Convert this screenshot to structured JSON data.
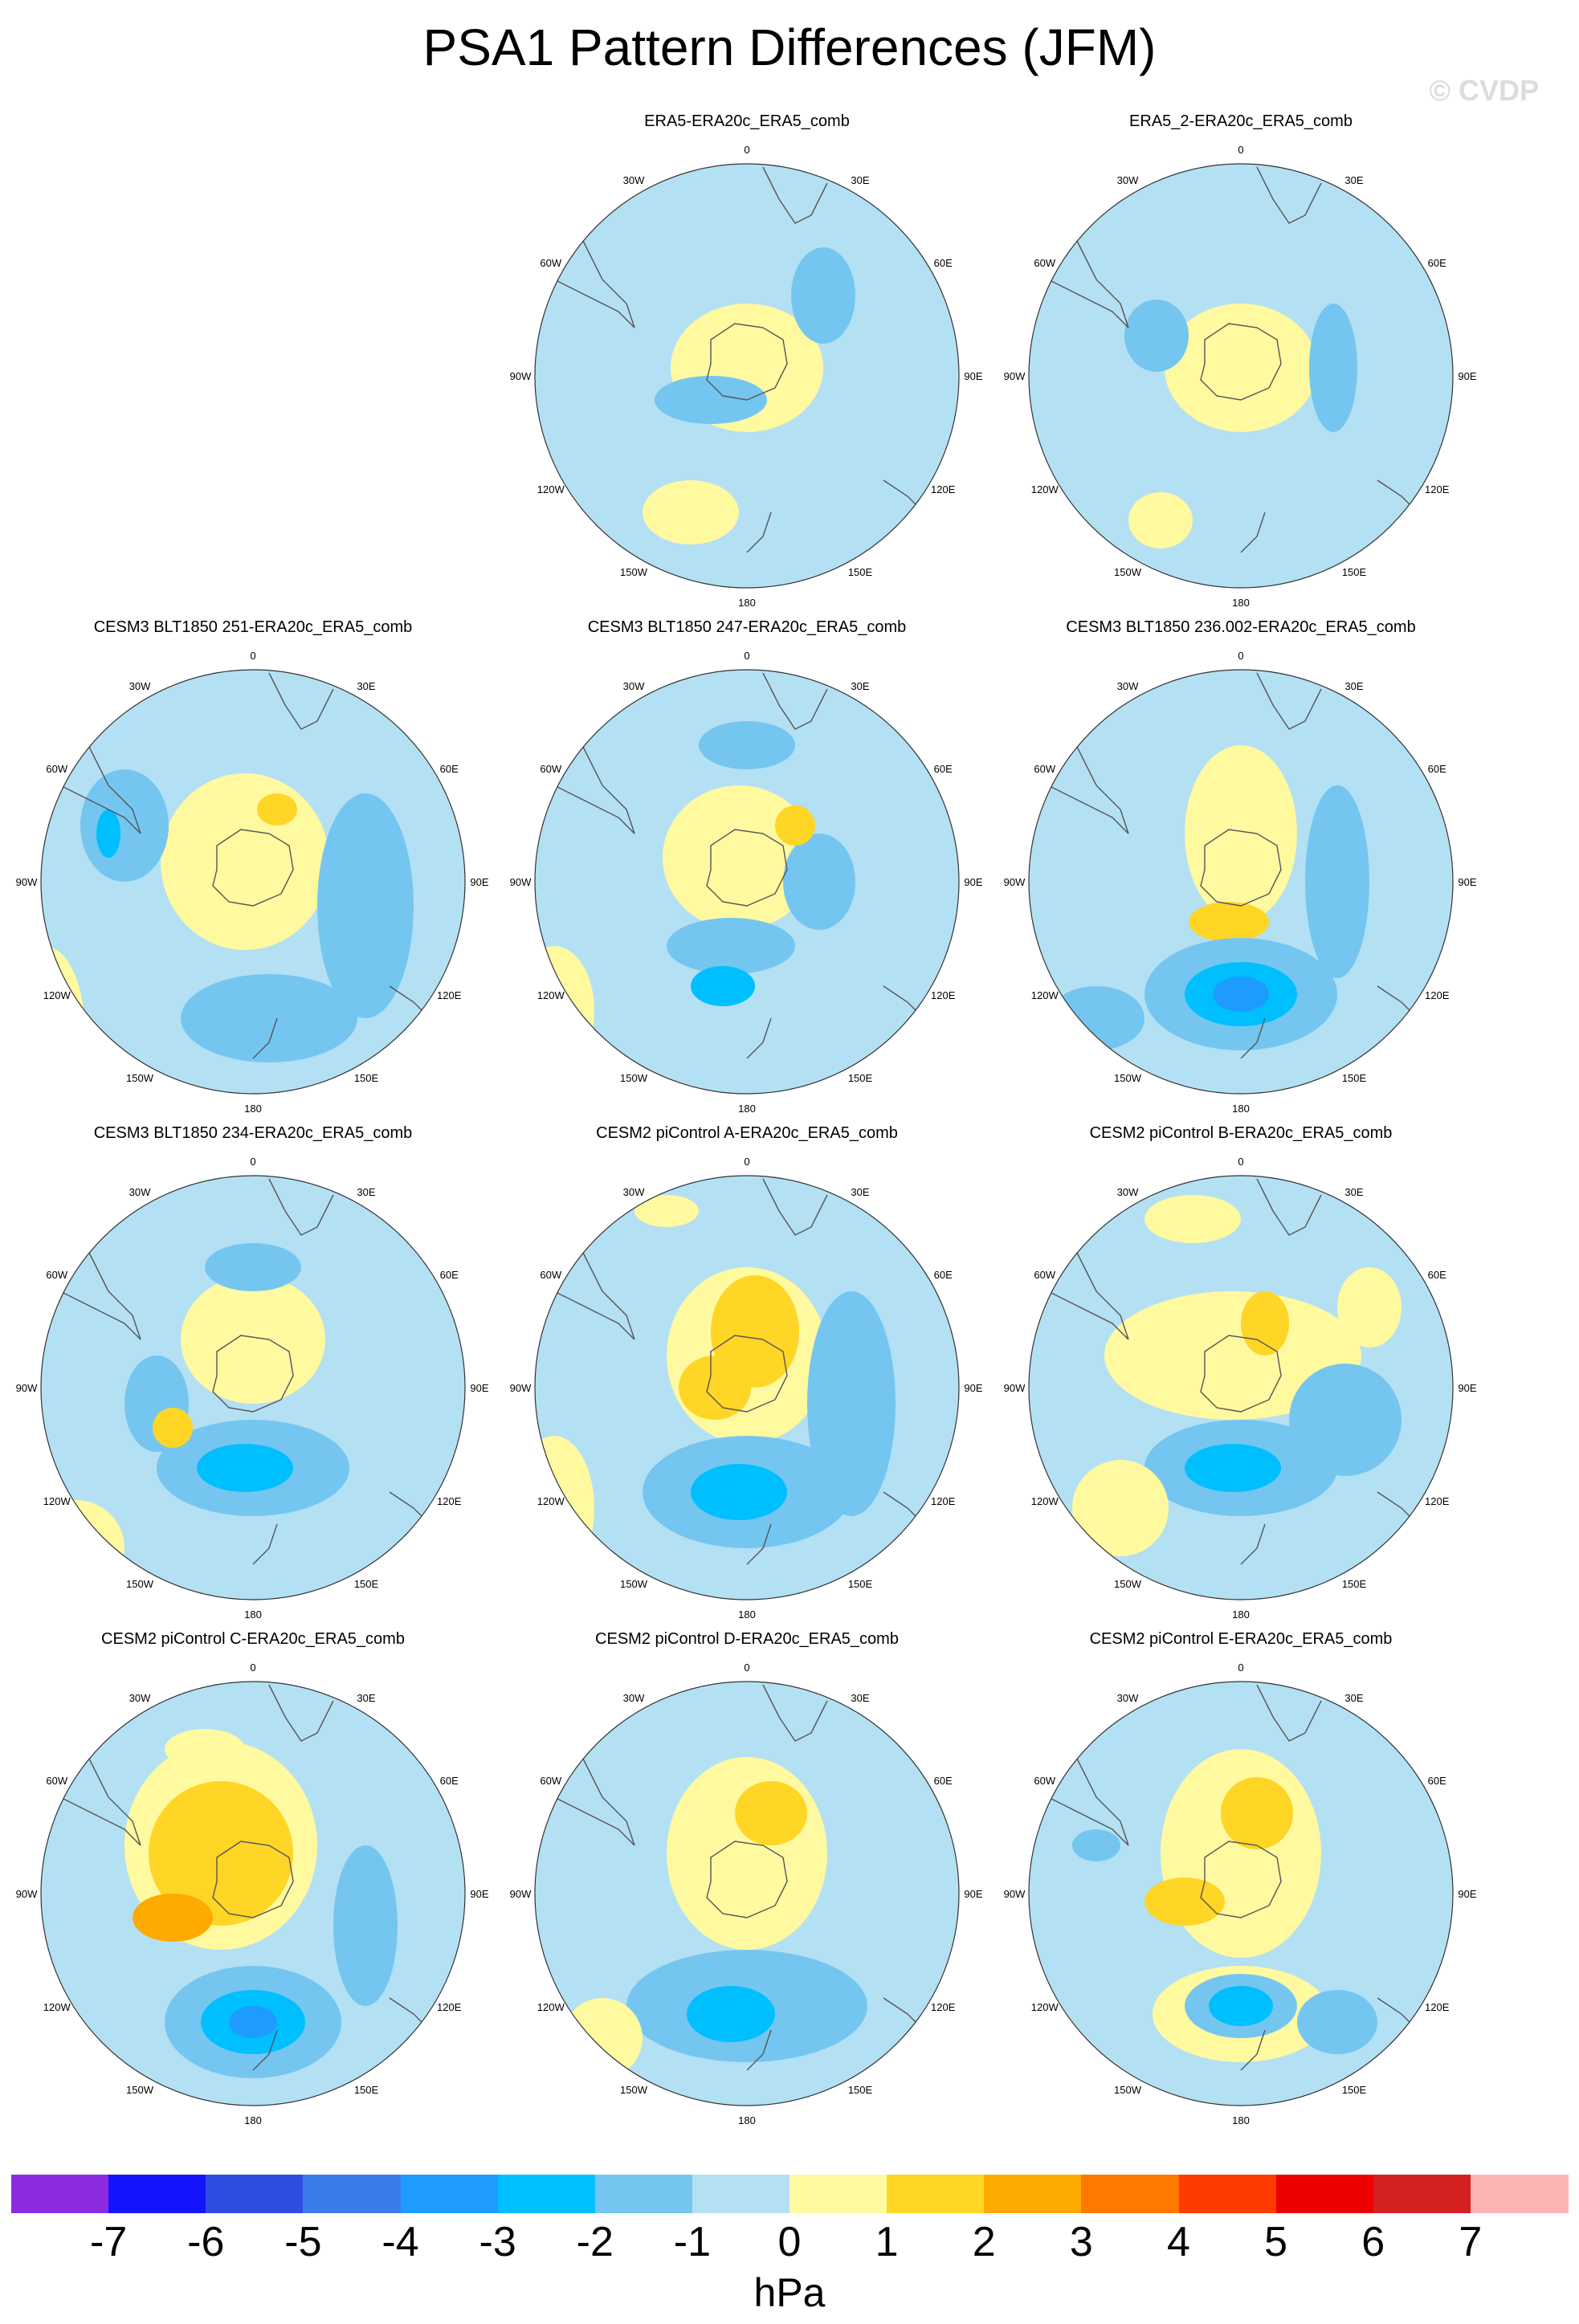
{
  "title": "PSA1 Pattern Differences (JFM)",
  "watermark": "© CVDP",
  "lon_labels": {
    "l0": "0",
    "l30e": "30E",
    "l60e": "60E",
    "l90e": "90E",
    "l120e": "120E",
    "l150e": "150E",
    "l180": "180",
    "l150w": "150W",
    "l120w": "120W",
    "l90w": "90W",
    "l60w": "60W",
    "l30w": "30W"
  },
  "panels": [
    {
      "title": "ERA5-ERA20c_ERA5_comb"
    },
    {
      "title": "ERA5_2-ERA20c_ERA5_comb"
    },
    {
      "title": "CESM3 BLT1850 251-ERA20c_ERA5_comb"
    },
    {
      "title": "CESM3 BLT1850 247-ERA20c_ERA5_comb"
    },
    {
      "title": "CESM3 BLT1850 236.002-ERA20c_ERA5_comb"
    },
    {
      "title": "CESM3 BLT1850 234-ERA20c_ERA5_comb"
    },
    {
      "title": "CESM2 piControl A-ERA20c_ERA5_comb"
    },
    {
      "title": "CESM2 piControl B-ERA20c_ERA5_comb"
    },
    {
      "title": "CESM2 piControl C-ERA20c_ERA5_comb"
    },
    {
      "title": "CESM2 piControl D-ERA20c_ERA5_comb"
    },
    {
      "title": "CESM2 piControl E-ERA20c_ERA5_comb"
    }
  ],
  "colorbar": {
    "colors": [
      "#8a2be2",
      "#1414ff",
      "#2e4de0",
      "#3a7de8",
      "#1e9bff",
      "#00bfff",
      "#74c6f0",
      "#b4e0f4",
      "#fff9a0",
      "#ffd526",
      "#ffaa00",
      "#ff7800",
      "#ff3c00",
      "#ee0000",
      "#d42020",
      "#ffb4b4"
    ],
    "ticks": [
      "-7",
      "-6",
      "-5",
      "-4",
      "-3",
      "-2",
      "-1",
      "0",
      "1",
      "2",
      "3",
      "4",
      "5",
      "6",
      "7"
    ],
    "units": "hPa"
  }
}
